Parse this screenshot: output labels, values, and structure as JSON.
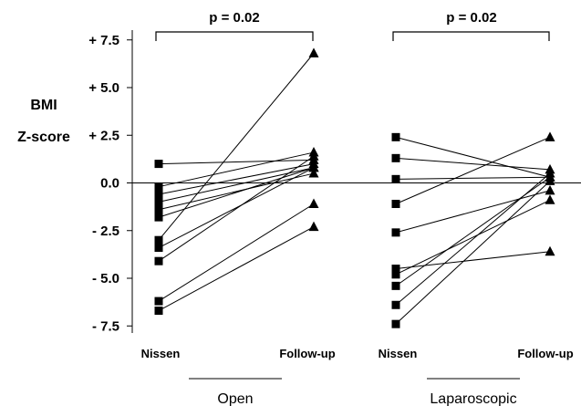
{
  "chart_data": {
    "type": "scatter",
    "ylabel": [
      "BMI",
      "Z-score"
    ],
    "y_ticks": [
      "+ 7.5",
      "+ 5.0",
      "+ 2.5",
      "0.0",
      "- 2.5",
      "- 5.0",
      "- 7.5"
    ],
    "y_tick_values": [
      7.5,
      5.0,
      2.5,
      0.0,
      -2.5,
      -5.0,
      -7.5
    ],
    "ylim": [
      -7.8,
      8.0
    ],
    "zero_line": 0,
    "groups": [
      {
        "name": "Open",
        "categories": [
          "Nissen",
          "Follow-up"
        ],
        "p_value": "p = 0.02",
        "pairs": [
          {
            "nissen": 1.0,
            "followup": 1.2
          },
          {
            "nissen": -0.2,
            "followup": 1.6
          },
          {
            "nissen": -0.6,
            "followup": 1.0
          },
          {
            "nissen": -1.0,
            "followup": 0.8
          },
          {
            "nissen": -1.4,
            "followup": 0.5
          },
          {
            "nissen": -1.8,
            "followup": 0.8
          },
          {
            "nissen": -3.0,
            "followup": 6.8
          },
          {
            "nissen": -3.4,
            "followup": 0.8
          },
          {
            "nissen": -4.1,
            "followup": 1.4
          },
          {
            "nissen": -6.2,
            "followup": -1.1
          },
          {
            "nissen": -6.7,
            "followup": -2.3
          }
        ]
      },
      {
        "name": "Laparoscopic",
        "categories": [
          "Nissen",
          "Follow-up"
        ],
        "p_value": "p = 0.02",
        "pairs": [
          {
            "nissen": 2.4,
            "followup": 0.3
          },
          {
            "nissen": 1.3,
            "followup": 0.7
          },
          {
            "nissen": 0.2,
            "followup": 0.3
          },
          {
            "nissen": -1.1,
            "followup": 2.4
          },
          {
            "nissen": -2.6,
            "followup": -0.4
          },
          {
            "nissen": -4.5,
            "followup": -3.6
          },
          {
            "nissen": -4.8,
            "followup": -0.9
          },
          {
            "nissen": -5.4,
            "followup": 0.3
          },
          {
            "nissen": -6.4,
            "followup": 0.5
          },
          {
            "nissen": -7.4,
            "followup": 0.1
          }
        ]
      }
    ]
  }
}
